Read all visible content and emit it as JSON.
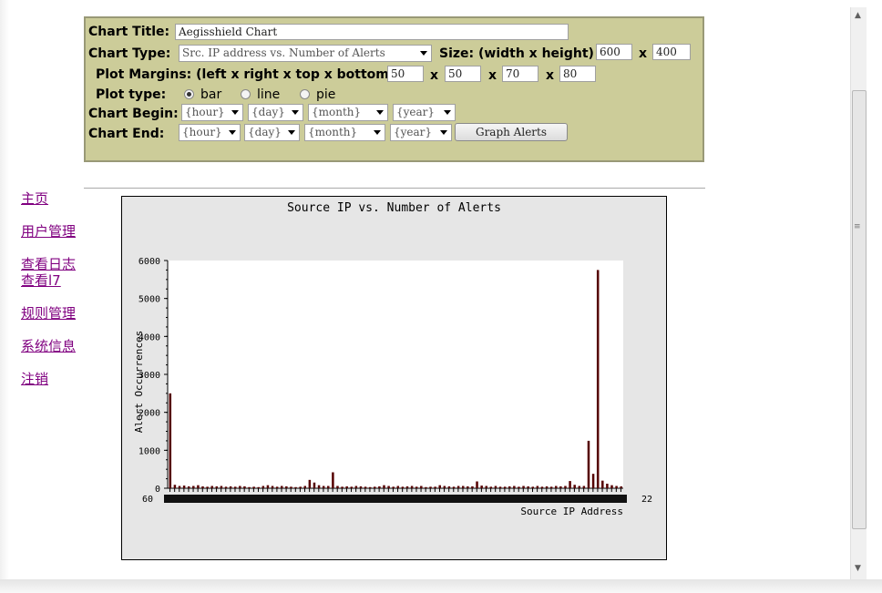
{
  "form": {
    "chart_title_label": "Chart Title:",
    "chart_title_value": "Aegisshield Chart",
    "chart_type_label": "Chart Type:",
    "chart_type_value": "Src. IP address vs. Number of Alerts",
    "size_label": "Size: (width x height)",
    "width_value": "600",
    "height_value": "400",
    "x1": "x",
    "margins_label": "Plot Margins: (left x right x top x bottom)",
    "margin_left": "50",
    "margin_right": "50",
    "margin_top": "70",
    "margin_bottom": "80",
    "plot_type_label": "Plot type:",
    "plot_bar": "bar",
    "plot_line": "line",
    "plot_pie": "pie",
    "chart_begin_label": "Chart Begin:",
    "chart_end_label": "Chart End:",
    "hour": "{hour}",
    "day": "{day}",
    "month": "{month}",
    "year": "{year}",
    "graph_button": "Graph Alerts"
  },
  "nav": [
    "主页",
    "用户管理",
    "查看日志",
    "查看l7",
    "规则管理",
    "系统信息",
    "注销"
  ],
  "colors": {
    "panel": "#cccc99",
    "bar": "#550000",
    "link": "#800080",
    "chart_bg": "#e6e6e6"
  },
  "chart_data": {
    "type": "bar",
    "title": "Source IP vs. Number of Alerts",
    "xlabel": "Source IP Address",
    "ylabel": "Alert Occurrences",
    "ylim": [
      0,
      6000
    ],
    "yticks": [
      0,
      1000,
      2000,
      3000,
      4000,
      5000,
      6000
    ],
    "x_tick_labels_legible": [
      "60",
      "22"
    ],
    "n_categories": 98,
    "values": [
      2500,
      90,
      60,
      70,
      50,
      60,
      80,
      50,
      40,
      60,
      50,
      60,
      40,
      50,
      40,
      60,
      50,
      30,
      40,
      30,
      60,
      80,
      60,
      40,
      60,
      50,
      40,
      30,
      40,
      60,
      220,
      150,
      80,
      60,
      60,
      420,
      60,
      40,
      50,
      40,
      60,
      50,
      40,
      30,
      40,
      50,
      80,
      60,
      40,
      60,
      40,
      50,
      60,
      40,
      60,
      30,
      40,
      40,
      80,
      60,
      50,
      40,
      60,
      60,
      50,
      50,
      180,
      70,
      60,
      40,
      60,
      40,
      40,
      50,
      60,
      40,
      60,
      50,
      40,
      60,
      40,
      50,
      40,
      60,
      50,
      60,
      190,
      90,
      60,
      60,
      1250,
      380,
      5750,
      200,
      120,
      80,
      60,
      50
    ]
  }
}
